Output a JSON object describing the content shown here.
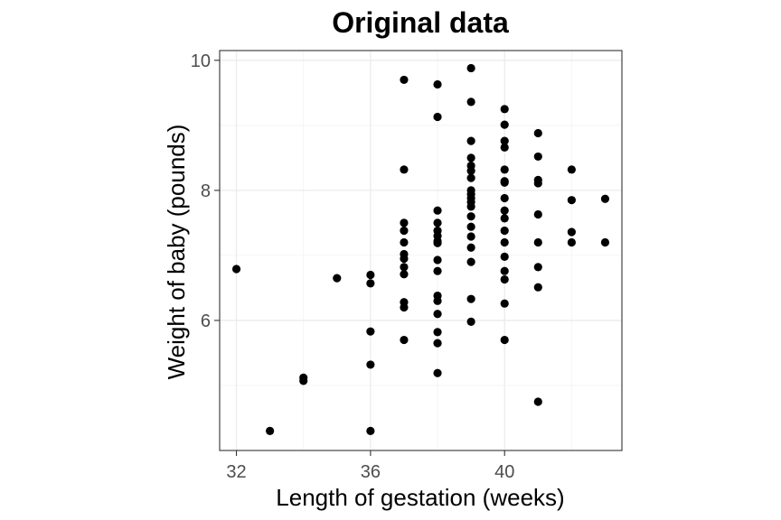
{
  "chart_data": {
    "type": "scatter",
    "title": "Original data",
    "xlabel": "Length of gestation (weeks)",
    "ylabel": "Weight of baby (pounds)",
    "xlim": [
      31.5,
      43.5
    ],
    "ylim": [
      4.0,
      10.15
    ],
    "x_ticks": [
      32,
      36,
      40
    ],
    "y_ticks": [
      6,
      8,
      10
    ],
    "grid": true,
    "legend": "none",
    "point_color": "#000000",
    "points": [
      {
        "x": 32,
        "y": 6.79
      },
      {
        "x": 33,
        "y": 4.3
      },
      {
        "x": 34,
        "y": 5.12
      },
      {
        "x": 34,
        "y": 5.07
      },
      {
        "x": 35,
        "y": 6.65
      },
      {
        "x": 36,
        "y": 6.7
      },
      {
        "x": 36,
        "y": 6.57
      },
      {
        "x": 36,
        "y": 5.83
      },
      {
        "x": 36,
        "y": 5.32
      },
      {
        "x": 36,
        "y": 4.3
      },
      {
        "x": 37,
        "y": 9.7
      },
      {
        "x": 37,
        "y": 8.32
      },
      {
        "x": 37,
        "y": 7.5
      },
      {
        "x": 37,
        "y": 7.38
      },
      {
        "x": 37,
        "y": 7.2
      },
      {
        "x": 37,
        "y": 7.02
      },
      {
        "x": 37,
        "y": 6.95
      },
      {
        "x": 37,
        "y": 6.82
      },
      {
        "x": 37,
        "y": 6.71
      },
      {
        "x": 37,
        "y": 6.28
      },
      {
        "x": 37,
        "y": 6.2
      },
      {
        "x": 37,
        "y": 5.7
      },
      {
        "x": 38,
        "y": 9.63
      },
      {
        "x": 38,
        "y": 9.13
      },
      {
        "x": 38,
        "y": 7.69
      },
      {
        "x": 38,
        "y": 7.5
      },
      {
        "x": 38,
        "y": 7.38
      },
      {
        "x": 38,
        "y": 7.3
      },
      {
        "x": 38,
        "y": 7.22
      },
      {
        "x": 38,
        "y": 7.19
      },
      {
        "x": 38,
        "y": 6.93
      },
      {
        "x": 38,
        "y": 6.76
      },
      {
        "x": 38,
        "y": 6.38
      },
      {
        "x": 38,
        "y": 6.3
      },
      {
        "x": 38,
        "y": 6.1
      },
      {
        "x": 38,
        "y": 5.82
      },
      {
        "x": 38,
        "y": 5.65
      },
      {
        "x": 38,
        "y": 5.19
      },
      {
        "x": 39,
        "y": 9.88
      },
      {
        "x": 39,
        "y": 9.36
      },
      {
        "x": 39,
        "y": 8.76
      },
      {
        "x": 39,
        "y": 8.5
      },
      {
        "x": 39,
        "y": 8.38
      },
      {
        "x": 39,
        "y": 8.3
      },
      {
        "x": 39,
        "y": 8.19
      },
      {
        "x": 39,
        "y": 8.0
      },
      {
        "x": 39,
        "y": 7.94
      },
      {
        "x": 39,
        "y": 7.88
      },
      {
        "x": 39,
        "y": 7.82
      },
      {
        "x": 39,
        "y": 7.75
      },
      {
        "x": 39,
        "y": 7.6
      },
      {
        "x": 39,
        "y": 7.44
      },
      {
        "x": 39,
        "y": 7.29
      },
      {
        "x": 39,
        "y": 7.12
      },
      {
        "x": 39,
        "y": 6.9
      },
      {
        "x": 39,
        "y": 6.33
      },
      {
        "x": 39,
        "y": 5.98
      },
      {
        "x": 40,
        "y": 9.25
      },
      {
        "x": 40,
        "y": 9.01
      },
      {
        "x": 40,
        "y": 8.76
      },
      {
        "x": 40,
        "y": 8.66
      },
      {
        "x": 40,
        "y": 8.32
      },
      {
        "x": 40,
        "y": 8.14
      },
      {
        "x": 40,
        "y": 8.12
      },
      {
        "x": 40,
        "y": 7.88
      },
      {
        "x": 40,
        "y": 7.69
      },
      {
        "x": 40,
        "y": 7.57
      },
      {
        "x": 40,
        "y": 7.38
      },
      {
        "x": 40,
        "y": 7.2
      },
      {
        "x": 40,
        "y": 6.98
      },
      {
        "x": 40,
        "y": 6.76
      },
      {
        "x": 40,
        "y": 6.63
      },
      {
        "x": 40,
        "y": 6.26
      },
      {
        "x": 40,
        "y": 5.7
      },
      {
        "x": 41,
        "y": 8.88
      },
      {
        "x": 41,
        "y": 8.52
      },
      {
        "x": 41,
        "y": 8.16
      },
      {
        "x": 41,
        "y": 8.11
      },
      {
        "x": 41,
        "y": 7.63
      },
      {
        "x": 41,
        "y": 7.2
      },
      {
        "x": 41,
        "y": 6.82
      },
      {
        "x": 41,
        "y": 6.51
      },
      {
        "x": 41,
        "y": 4.75
      },
      {
        "x": 42,
        "y": 8.32
      },
      {
        "x": 42,
        "y": 7.85
      },
      {
        "x": 42,
        "y": 7.36
      },
      {
        "x": 42,
        "y": 7.2
      },
      {
        "x": 43,
        "y": 7.87
      },
      {
        "x": 43,
        "y": 7.2
      }
    ]
  }
}
